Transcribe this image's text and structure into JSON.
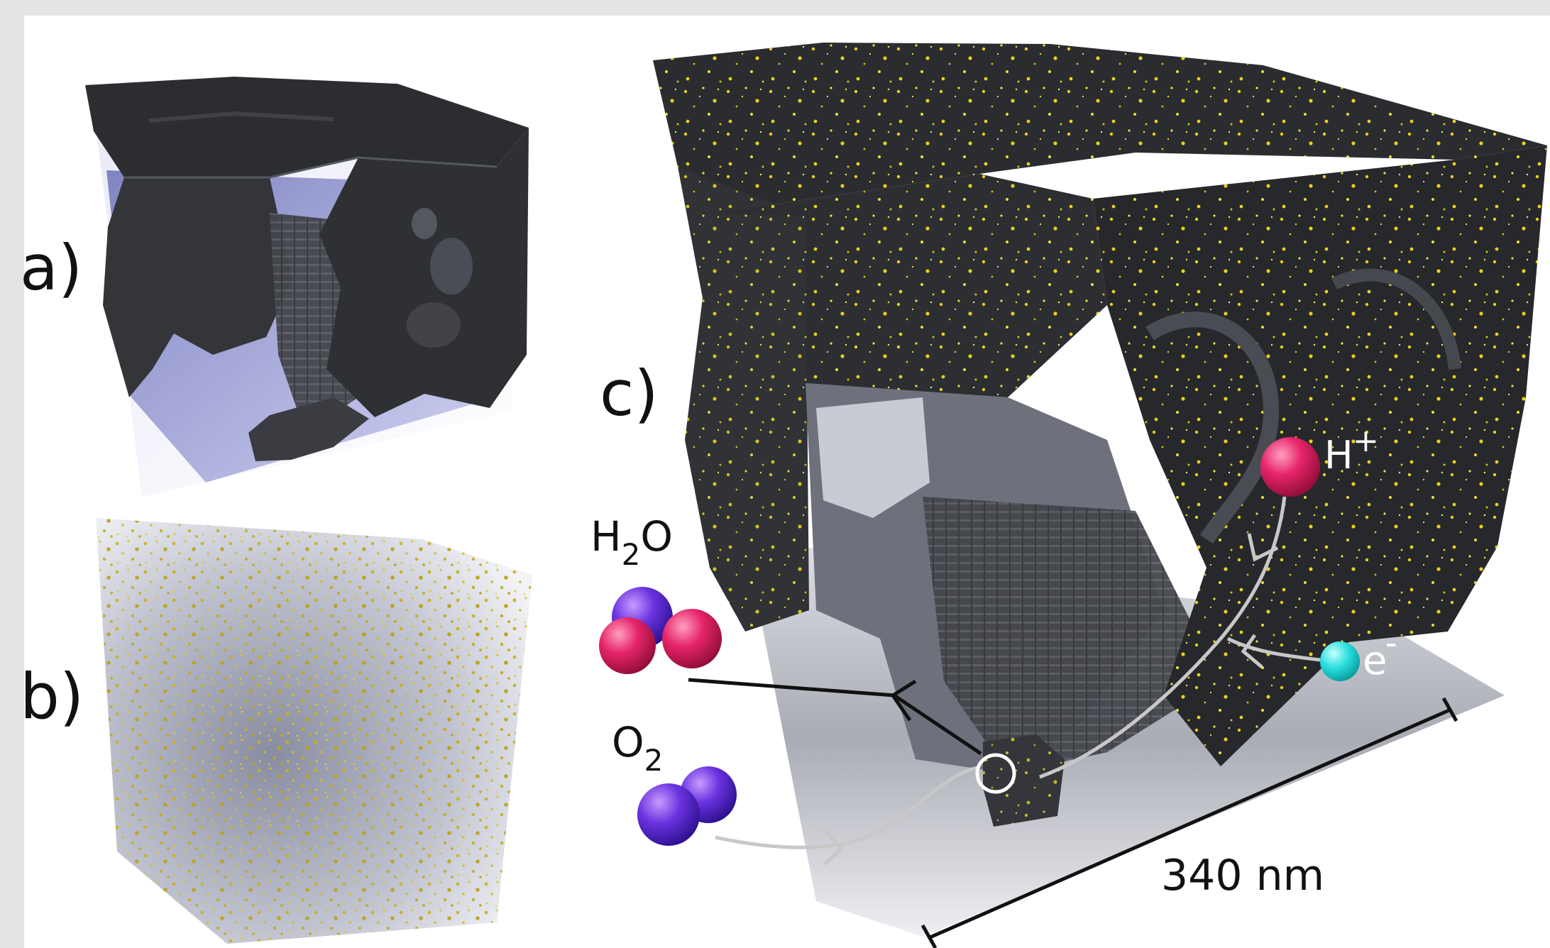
{
  "panels": {
    "a": {
      "label": "a)"
    },
    "b": {
      "label": "b)"
    },
    "c": {
      "label": "c)"
    }
  },
  "species": {
    "proton": {
      "symbol": "H",
      "charge": "+"
    },
    "electron": {
      "symbol": "e",
      "charge": "-"
    },
    "water": {
      "prefix": "H",
      "subscript": "2",
      "suffix": "O"
    },
    "oxygen": {
      "prefix": "O",
      "subscript": "2"
    }
  },
  "scale_bar": {
    "label": "340 nm"
  },
  "colors": {
    "carbon_dark": "#2f3135",
    "carbon_face": "#3a3c41",
    "pore_blue": "#8a8fc8",
    "platinum_yellow": "#e8d21a",
    "proton_red": "#e0245e",
    "electron_cyan": "#2fe0e0",
    "oxygen_purple": "#6a3bd6",
    "path_gray": "#c8c8c8",
    "path_black": "#111111"
  },
  "icons": {
    "proton": "red-sphere",
    "electron": "cyan-sphere",
    "water_molecule": "purple-red-spheres",
    "oxygen_molecule": "purple-spheres",
    "reaction_site": "white-ring"
  }
}
